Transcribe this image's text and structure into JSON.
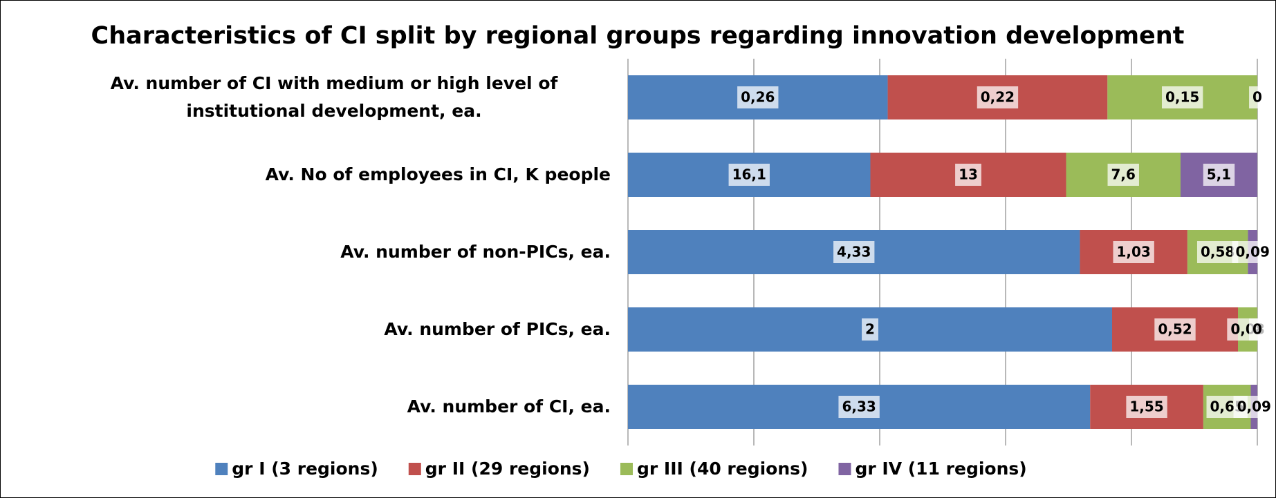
{
  "chart_data": {
    "type": "bar",
    "orientation": "horizontal",
    "stacking": "percent",
    "title": "Characteristics of CI split by regional groups regarding innovation development",
    "categories": [
      "Av. number of CI with medium or high level of institutional development, ea.",
      "Av. No of employees in CI, K people",
      "Av. number of non-PICs, ea.",
      "Av. number of PICs, ea.",
      "Av. number of CI, ea."
    ],
    "series": [
      {
        "name": "gr I (3 regions)",
        "color": "#4f81bd",
        "values": [
          0.26,
          16.1,
          4.33,
          2,
          6.33
        ],
        "value_labels": [
          "0,26",
          "16,1",
          "4,33",
          "2",
          "6,33"
        ]
      },
      {
        "name": "gr II (29 regions)",
        "color": "#c0504d",
        "values": [
          0.22,
          13,
          1.03,
          0.52,
          1.55
        ],
        "value_labels": [
          "0,22",
          "13",
          "1,03",
          "0,52",
          "1,55"
        ]
      },
      {
        "name": "gr III (40 regions)",
        "color": "#9bbb59",
        "values": [
          0.15,
          7.6,
          0.58,
          0.08,
          0.65
        ],
        "value_labels": [
          "0,15",
          "7,6",
          "0,58",
          "0,08",
          "0,65"
        ]
      },
      {
        "name": "gr IV (11 regions)",
        "color": "#8064a2",
        "values": [
          0,
          5.1,
          0.09,
          0,
          0.09
        ],
        "value_labels": [
          "0",
          "5,1",
          "0,09",
          "0",
          "0,09"
        ]
      }
    ],
    "xlim": [
      0,
      100
    ],
    "xticks": [
      0,
      20,
      40,
      60,
      80,
      100
    ],
    "grid": true,
    "legend": "bottom"
  }
}
